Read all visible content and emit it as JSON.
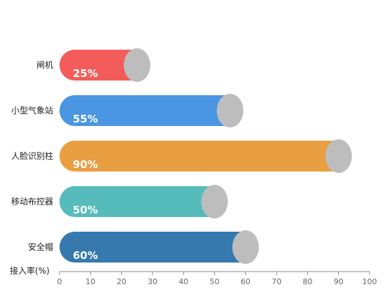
{
  "chart_data": {
    "type": "bar",
    "orientation": "horizontal",
    "categories": [
      "闸机",
      "小型气象站",
      "人脸识别柱",
      "移动布控器",
      "安全帽"
    ],
    "values": [
      25,
      55,
      90,
      50,
      60
    ],
    "value_labels": [
      "25%",
      "55%",
      "90%",
      "50%",
      "60%"
    ],
    "colors": [
      "#f45b5b",
      "#4a96e3",
      "#e89e41",
      "#55bcbb",
      "#3579ae"
    ],
    "end_marker_color": "#bdbdbd",
    "xlabel": "接入率(%)",
    "xlim": [
      0,
      100
    ],
    "xticks": [
      0,
      10,
      20,
      30,
      40,
      50,
      60,
      70,
      80,
      90,
      100
    ],
    "grid": false,
    "legend": "none"
  }
}
